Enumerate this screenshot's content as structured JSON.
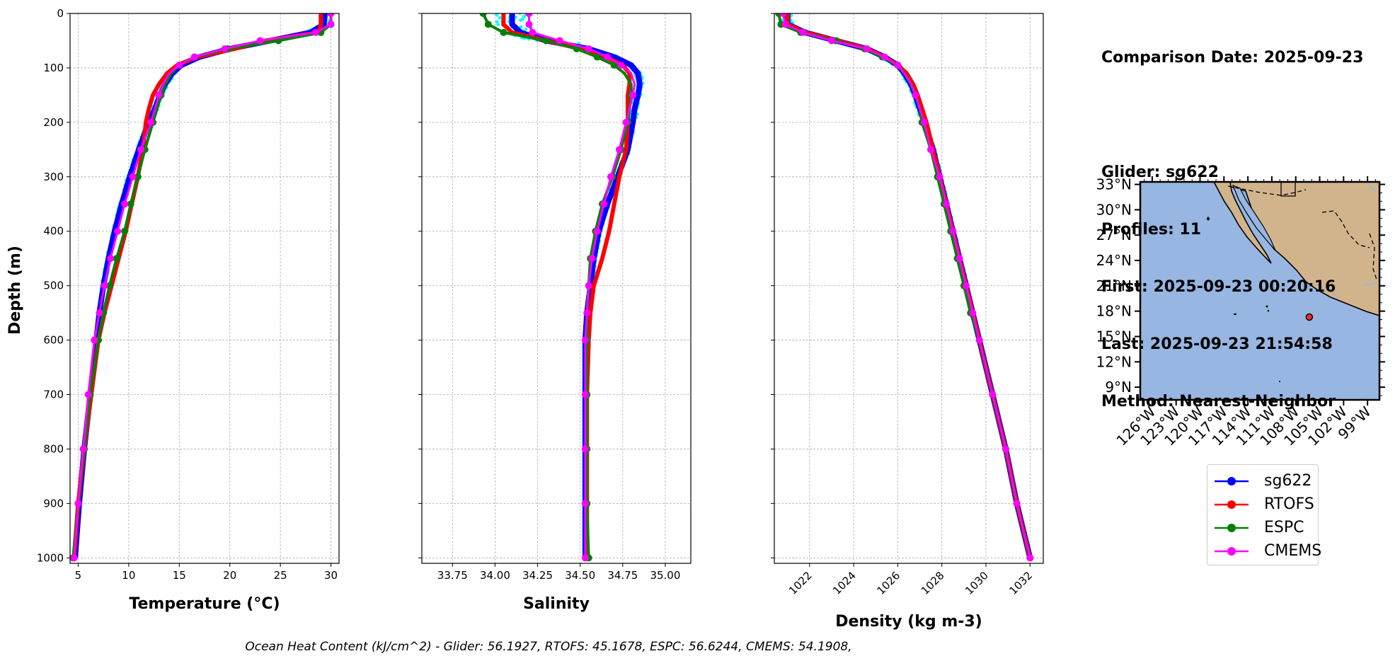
{
  "info": {
    "comparison_date": "Comparison Date: 2025-09-23",
    "glider": "Glider: sg622",
    "profiles": "Profiles: 11",
    "first": "First: 2025-09-23 00:20:16",
    "last": "Last: 2025-09-23 21:54:58",
    "method": "Method: Nearest-Neighbor"
  },
  "footer": "Ocean Heat Content (kJ/cm^2) - Glider: 56.1927,  RTOFS: 45.1678,  ESPC: 56.6244,  CMEMS: 54.1908,",
  "colors": {
    "sg622": "#0000ff",
    "RTOFS": "#ff0000",
    "ESPC": "#008000",
    "CMEMS": "#ff00ff",
    "glider_raw": "#00ffff",
    "ocean": "#97b6e1",
    "land": "#d2b48c"
  },
  "legend": [
    {
      "name": "sg622",
      "color": "#0000ff"
    },
    {
      "name": "RTOFS",
      "color": "#ff0000"
    },
    {
      "name": "ESPC",
      "color": "#008000"
    },
    {
      "name": "CMEMS",
      "color": "#ff00ff"
    }
  ],
  "chart_data": [
    {
      "type": "line",
      "xlabel": "Temperature (°C)",
      "ylabel": "Depth (m)",
      "xlim": [
        4.2,
        30.8
      ],
      "ylim": [
        1010,
        0
      ],
      "xticks": [
        "5",
        "10",
        "15",
        "20",
        "25",
        "30"
      ],
      "yticks": [
        "0",
        "100",
        "200",
        "300",
        "400",
        "500",
        "600",
        "700",
        "800",
        "900",
        "1000"
      ],
      "grid": true,
      "depth": [
        0,
        20,
        35,
        50,
        65,
        80,
        95,
        110,
        130,
        150,
        175,
        200,
        250,
        300,
        350,
        400,
        450,
        500,
        550,
        600,
        700,
        800,
        900,
        1000
      ],
      "series": [
        {
          "name": "sg622",
          "values": [
            29.4,
            29.3,
            28.0,
            24.0,
            20.0,
            17.0,
            15.2,
            14.3,
            13.6,
            13.1,
            12.6,
            12.0,
            11.0,
            10.1,
            9.3,
            8.6,
            8.0,
            7.5,
            7.1,
            6.8,
            6.2,
            5.6,
            5.1,
            4.7
          ]
        },
        {
          "name": "RTOFS",
          "values": [
            29.0,
            29.0,
            28.8,
            23.5,
            20.5,
            16.8,
            14.8,
            13.8,
            13.0,
            12.4,
            12.0,
            11.7,
            11.4,
            10.9,
            10.3,
            9.7,
            9.0,
            8.3,
            7.6,
            7.0,
            6.3,
            5.6,
            5.0,
            4.6
          ]
        },
        {
          "name": "ESPC",
          "values": [
            30.0,
            30.0,
            29.0,
            24.8,
            19.8,
            16.5,
            15.0,
            14.2,
            13.6,
            13.2,
            12.8,
            12.4,
            11.6,
            10.9,
            10.2,
            9.6,
            8.8,
            8.1,
            7.5,
            7.0,
            6.2,
            5.6,
            5.0,
            4.5
          ]
        },
        {
          "name": "CMEMS",
          "values": [
            30.0,
            30.0,
            28.5,
            23.0,
            19.5,
            16.5,
            15.0,
            14.0,
            13.4,
            13.0,
            12.6,
            12.2,
            11.2,
            10.4,
            9.6,
            8.9,
            8.2,
            7.6,
            7.1,
            6.6,
            6.0,
            5.5,
            5.0,
            4.6
          ]
        }
      ]
    },
    {
      "type": "line",
      "xlabel": "Salinity",
      "xlim": [
        33.57,
        35.15
      ],
      "ylim": [
        1010,
        0
      ],
      "xticks": [
        "33.75",
        "34.00",
        "34.25",
        "34.50",
        "34.75",
        "35.00"
      ],
      "grid": true,
      "depth": [
        0,
        20,
        35,
        50,
        65,
        80,
        95,
        110,
        130,
        150,
        175,
        200,
        250,
        300,
        350,
        400,
        450,
        500,
        550,
        600,
        700,
        800,
        900,
        1000
      ],
      "series": [
        {
          "name": "sg622",
          "values": [
            34.1,
            34.1,
            34.15,
            34.3,
            34.55,
            34.7,
            34.8,
            34.84,
            34.85,
            34.84,
            34.82,
            34.81,
            34.78,
            34.72,
            34.66,
            34.61,
            34.58,
            34.56,
            34.54,
            34.53,
            34.53,
            34.53,
            34.53,
            34.53
          ]
        },
        {
          "name": "RTOFS",
          "values": [
            34.05,
            34.05,
            34.1,
            34.3,
            34.5,
            34.65,
            34.75,
            34.79,
            34.79,
            34.78,
            34.78,
            34.78,
            34.77,
            34.73,
            34.7,
            34.67,
            34.63,
            34.58,
            34.56,
            34.55,
            34.54,
            34.54,
            34.54,
            34.54
          ]
        },
        {
          "name": "ESPC",
          "values": [
            33.93,
            33.96,
            34.05,
            34.3,
            34.48,
            34.6,
            34.7,
            34.76,
            34.8,
            34.8,
            34.79,
            34.78,
            34.74,
            34.69,
            34.63,
            34.59,
            34.56,
            34.55,
            34.54,
            34.54,
            34.54,
            34.54,
            34.54,
            34.55
          ]
        },
        {
          "name": "CMEMS",
          "values": [
            34.2,
            34.2,
            34.22,
            34.38,
            34.55,
            34.66,
            34.74,
            34.8,
            34.82,
            34.81,
            34.79,
            34.77,
            34.73,
            34.68,
            34.64,
            34.6,
            34.57,
            34.55,
            34.54,
            34.53,
            34.53,
            34.53,
            34.53,
            34.53
          ]
        }
      ]
    },
    {
      "type": "line",
      "xlabel": "Density (kg m-3)",
      "xlim": [
        1020.4,
        1032.6
      ],
      "ylim": [
        1010,
        0
      ],
      "xticks": [
        "1022",
        "1024",
        "1026",
        "1028",
        "1030",
        "1032"
      ],
      "grid": true,
      "depth": [
        0,
        20,
        35,
        50,
        65,
        80,
        95,
        110,
        130,
        150,
        175,
        200,
        250,
        300,
        350,
        400,
        450,
        500,
        550,
        600,
        700,
        800,
        900,
        1000
      ],
      "series": [
        {
          "name": "sg622",
          "values": [
            1021.0,
            1021.0,
            1021.8,
            1023.2,
            1024.6,
            1025.4,
            1026.0,
            1026.3,
            1026.6,
            1026.8,
            1027.0,
            1027.2,
            1027.6,
            1027.9,
            1028.2,
            1028.5,
            1028.8,
            1029.1,
            1029.4,
            1029.7,
            1030.3,
            1030.9,
            1031.4,
            1032.0
          ]
        },
        {
          "name": "RTOFS",
          "values": [
            1021.0,
            1021.0,
            1021.8,
            1023.3,
            1024.6,
            1025.4,
            1026.0,
            1026.4,
            1026.7,
            1026.9,
            1027.1,
            1027.3,
            1027.6,
            1027.9,
            1028.2,
            1028.5,
            1028.8,
            1029.1,
            1029.4,
            1029.7,
            1030.3,
            1030.9,
            1031.4,
            1032.0
          ]
        },
        {
          "name": "ESPC",
          "values": [
            1020.6,
            1020.7,
            1021.6,
            1023.2,
            1024.5,
            1025.3,
            1026.0,
            1026.3,
            1026.6,
            1026.8,
            1027.0,
            1027.1,
            1027.5,
            1027.8,
            1028.1,
            1028.4,
            1028.7,
            1029.0,
            1029.3,
            1029.7,
            1030.3,
            1030.9,
            1031.4,
            1032.0
          ]
        },
        {
          "name": "CMEMS",
          "values": [
            1020.8,
            1020.9,
            1021.7,
            1023.0,
            1024.6,
            1025.4,
            1026.0,
            1026.3,
            1026.6,
            1026.8,
            1027.0,
            1027.2,
            1027.5,
            1027.9,
            1028.2,
            1028.5,
            1028.8,
            1029.1,
            1029.4,
            1029.7,
            1030.3,
            1030.9,
            1031.4,
            1032.0
          ]
        }
      ]
    }
  ],
  "map": {
    "lat_labels": [
      "33°N",
      "30°N",
      "27°N",
      "24°N",
      "21°N",
      "18°N",
      "15°N",
      "12°N",
      "9°N"
    ],
    "lon_labels": [
      "126°W",
      "123°W",
      "120°W",
      "117°W",
      "114°W",
      "111°W",
      "108°W",
      "105°W",
      "102°W",
      "99°W"
    ],
    "glider_position": {
      "lat": 17.3,
      "lon": -106.3
    }
  }
}
